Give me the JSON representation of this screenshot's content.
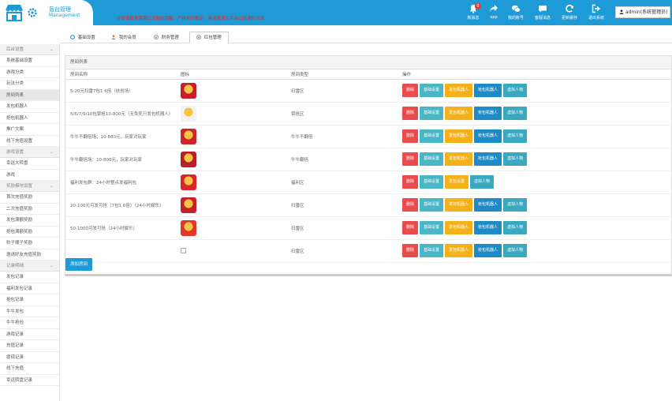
{
  "header": {
    "title": "后台管理",
    "subtitle": "Management",
    "marquee": "计费请联系客服公司网站提醒，严格执行规定，具体情况以平台公告通知为准",
    "toolbar": [
      {
        "key": "notify",
        "label": "新消息",
        "icon": "bell-icon",
        "badge": "0"
      },
      {
        "key": "app",
        "label": "app",
        "icon": "share-icon"
      },
      {
        "key": "account",
        "label": "我的账号",
        "icon": "chat-icon"
      },
      {
        "key": "service",
        "label": "客服消息",
        "icon": "message-icon"
      },
      {
        "key": "refresh",
        "label": "更新缓存",
        "icon": "refresh-icon"
      },
      {
        "key": "logout",
        "label": "退出系统",
        "icon": "logout-icon"
      }
    ],
    "admin_label": "admin(系统管理员)"
  },
  "sidebar": [
    {
      "group": "后台设置",
      "items": [
        "系统基础设置",
        "游戏分类",
        "玩法分类",
        "房间列表",
        "发包机器人",
        "抢包机器人",
        "推广文案",
        "线下充值设置"
      ]
    },
    {
      "group": "游戏设置",
      "items": [
        "幸运大转盘",
        "游戏"
      ]
    },
    {
      "group": "奖励模块设置",
      "items": [
        "首次充值奖励",
        "二次充值奖励",
        "发包满额奖励",
        "抢包满额奖励",
        "豹子顺子奖励",
        "邀请好友充值奖励"
      ]
    },
    {
      "group": "记录明细",
      "items": [
        "发包记录",
        "福利发包记录",
        "抢包记录",
        "牛牛发包",
        "牛牛抢包",
        "游戏记录",
        "充值记录",
        "提现记录",
        "线下充值",
        "幸运转盘记录"
      ]
    }
  ],
  "tabs": [
    {
      "label": "基础设置",
      "icon": "gear-icon"
    },
    {
      "label": "我的会员",
      "icon": "user-icon"
    },
    {
      "label": "财务管理",
      "icon": "money-icon"
    },
    {
      "label": "红包管理",
      "icon": "redpacket-icon"
    }
  ],
  "active_tab": 3,
  "panel": {
    "title": "房间列表",
    "columns": [
      "房间名称",
      "图标",
      "房间类型",
      "操作"
    ],
    "rows": [
      {
        "name": "5-20元扫雷7包1.6倍（扶贫场）",
        "type": "扫雷区",
        "icon": "hongbao-icon",
        "iconColor": "#c8202a",
        "actions": [
          "删除",
          "基础设置",
          "发包机器人",
          "抢包机器人",
          "虚拟人物"
        ]
      },
      {
        "name": "5/6/7/9/10包禁抢10-800元（无免死只发包机器人）",
        "type": "禁抢区",
        "icon": "jinqiang-icon",
        "iconColor": "#f2f2f2",
        "actions": [
          "删除",
          "基础设置",
          "发包机器人",
          "抢包机器人",
          "虚拟人物"
        ]
      },
      {
        "name": "牛牛不翻倍场：10-880元，玩家对玩家",
        "type": "牛牛不翻倍",
        "icon": "niuniu-icon",
        "iconColor": "#d0242b",
        "actions": [
          "删除",
          "基础设置",
          "发包机器人",
          "抢包机器人",
          "虚拟人物"
        ]
      },
      {
        "name": "牛牛翻倍场：10-800元，玩家对玩家",
        "type": "牛牛翻倍",
        "icon": "niuniu-double-icon",
        "iconColor": "#b5202a",
        "actions": [
          "删除",
          "基础设置",
          "发包机器人",
          "抢包机器人",
          "虚拟人物"
        ]
      },
      {
        "name": "福利发包群：24小时整点发福利包",
        "type": "福利区",
        "icon": "fuli-icon",
        "iconColor": "#d9262a",
        "actions": [
          "删除",
          "基础设置",
          "发包设置",
          "虚拟人物"
        ]
      },
      {
        "name": "20-100元可发可抢（7包1.6倍）（24小时娱乐）",
        "type": "扫雷区",
        "icon": "saolei-icon",
        "iconColor": "#c62128",
        "actions": [
          "删除",
          "基础设置",
          "发包机器人",
          "抢包机器人",
          "虚拟人物"
        ]
      },
      {
        "name": "50-1000可发可抢（24小时娱乐）",
        "type": "扫雷区",
        "icon": "dragon-icon",
        "iconColor": "#e2362a",
        "actions": [
          "删除",
          "基础设置",
          "发包机器人",
          "抢包机器人",
          "虚拟人物"
        ]
      },
      {
        "name": "",
        "type": "扫雷区",
        "icon": "broken-image-icon",
        "iconColor": "",
        "actions": [
          "删除",
          "基础设置",
          "发包机器人",
          "抢包机器人",
          "虚拟人物"
        ]
      }
    ],
    "add_button": "添加房间"
  }
}
